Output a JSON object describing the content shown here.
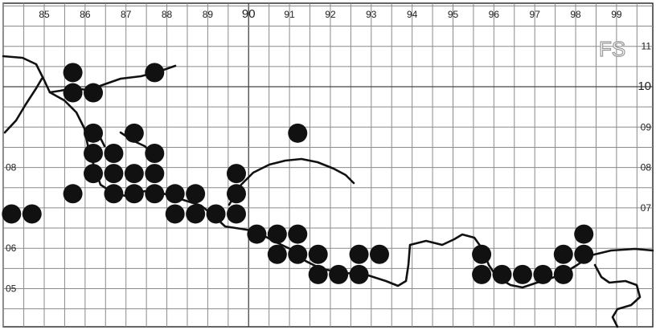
{
  "grid_zone_label": "FS",
  "easting_labels": [
    "85",
    "86",
    "87",
    "88",
    "89",
    "90",
    "91",
    "92",
    "93",
    "94",
    "95",
    "96",
    "97",
    "98",
    "99"
  ],
  "northing_left_labels": [
    "08",
    "06",
    "05"
  ],
  "northing_right_labels": [
    "11",
    "10",
    "09",
    "08",
    "07"
  ],
  "occupied_squares": [
    {
      "e": 85.7,
      "n": 10.35
    },
    {
      "e": 85.7,
      "n": 9.85
    },
    {
      "e": 86.2,
      "n": 9.85
    },
    {
      "e": 87.7,
      "n": 10.35
    },
    {
      "e": 86.2,
      "n": 8.85
    },
    {
      "e": 87.2,
      "n": 8.85
    },
    {
      "e": 91.2,
      "n": 8.85
    },
    {
      "e": 86.2,
      "n": 8.35
    },
    {
      "e": 86.7,
      "n": 8.35
    },
    {
      "e": 87.7,
      "n": 8.35
    },
    {
      "e": 86.2,
      "n": 7.85
    },
    {
      "e": 86.7,
      "n": 7.85
    },
    {
      "e": 87.2,
      "n": 7.85
    },
    {
      "e": 87.7,
      "n": 7.85
    },
    {
      "e": 89.7,
      "n": 7.85
    },
    {
      "e": 85.7,
      "n": 7.35
    },
    {
      "e": 86.7,
      "n": 7.35
    },
    {
      "e": 87.2,
      "n": 7.35
    },
    {
      "e": 87.7,
      "n": 7.35
    },
    {
      "e": 88.2,
      "n": 7.35
    },
    {
      "e": 88.7,
      "n": 7.35
    },
    {
      "e": 89.7,
      "n": 7.35
    },
    {
      "e": 84.2,
      "n": 6.85
    },
    {
      "e": 84.7,
      "n": 6.85
    },
    {
      "e": 88.2,
      "n": 6.85
    },
    {
      "e": 88.7,
      "n": 6.85
    },
    {
      "e": 89.2,
      "n": 6.85
    },
    {
      "e": 89.7,
      "n": 6.85
    },
    {
      "e": 90.2,
      "n": 6.35
    },
    {
      "e": 90.7,
      "n": 6.35
    },
    {
      "e": 91.2,
      "n": 6.35
    },
    {
      "e": 98.2,
      "n": 6.35
    },
    {
      "e": 90.7,
      "n": 5.85
    },
    {
      "e": 91.2,
      "n": 5.85
    },
    {
      "e": 91.7,
      "n": 5.85
    },
    {
      "e": 92.7,
      "n": 5.85
    },
    {
      "e": 93.2,
      "n": 5.85
    },
    {
      "e": 95.7,
      "n": 5.85
    },
    {
      "e": 97.7,
      "n": 5.85
    },
    {
      "e": 98.2,
      "n": 5.85
    },
    {
      "e": 91.7,
      "n": 5.35
    },
    {
      "e": 92.2,
      "n": 5.35
    },
    {
      "e": 92.7,
      "n": 5.35
    },
    {
      "e": 95.7,
      "n": 5.35
    },
    {
      "e": 96.2,
      "n": 5.35
    },
    {
      "e": 96.7,
      "n": 5.35
    },
    {
      "e": 97.2,
      "n": 5.35
    },
    {
      "e": 97.7,
      "n": 5.35
    }
  ]
}
